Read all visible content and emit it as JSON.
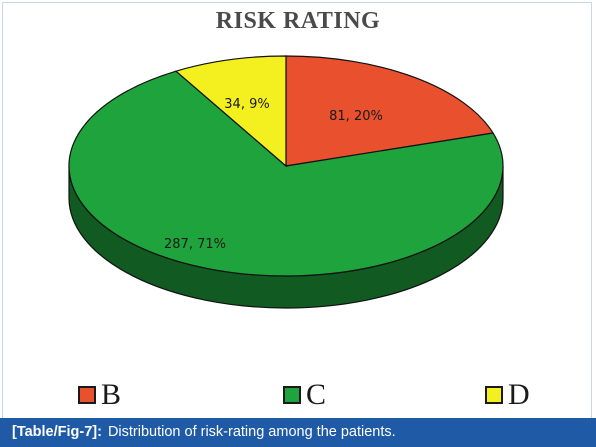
{
  "chart_data": {
    "type": "pie",
    "title": "RISK RATING",
    "slices": [
      {
        "name": "B",
        "value": 81,
        "percent": 20,
        "label": "81, 20%",
        "color": "#e8502e"
      },
      {
        "name": "C",
        "value": 287,
        "percent": 71,
        "label": "287, 71%",
        "color": "#1fa33c"
      },
      {
        "name": "D",
        "value": 34,
        "percent": 9,
        "label": "34, 9%",
        "color": "#f4ef1f"
      }
    ],
    "legend_placement": "bottom",
    "style": "3d"
  },
  "legend": {
    "items": [
      {
        "label": "B",
        "color": "#e8502e"
      },
      {
        "label": "C",
        "color": "#1fa33c"
      },
      {
        "label": "D",
        "color": "#f4ef1f"
      }
    ]
  },
  "caption": {
    "tag": "[Table/Fig-7]:",
    "text": "Distribution of risk-rating among the patients."
  }
}
